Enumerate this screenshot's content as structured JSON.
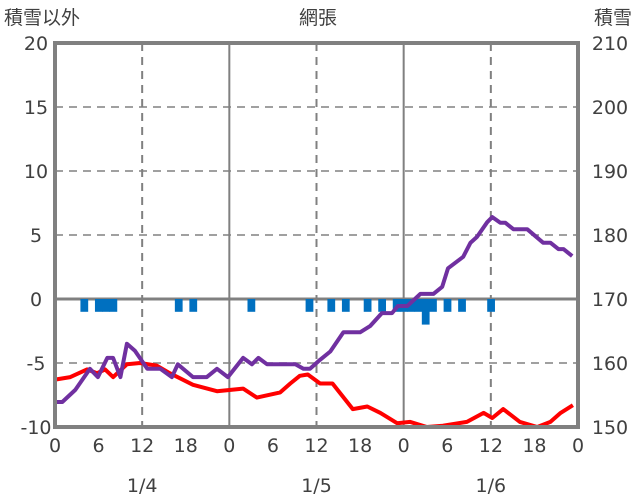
{
  "chart_data": {
    "type": "line",
    "title": "網張",
    "ylabel_left": "積雪以外",
    "ylabel_right": "積雪",
    "ylim_left": [
      -10,
      20
    ],
    "ylim_right": [
      150,
      210
    ],
    "yticks_left": [
      "20",
      "15",
      "10",
      "5",
      "0",
      "-5",
      "-10"
    ],
    "yticks_right": [
      "210",
      "200",
      "190",
      "180",
      "170",
      "160",
      "150"
    ],
    "xlim_hours": [
      0,
      72
    ],
    "xticks": [
      "0",
      "6",
      "12",
      "18",
      "0",
      "6",
      "12",
      "18",
      "0",
      "6",
      "12",
      "18",
      "0"
    ],
    "date_labels": [
      "1/4",
      "1/5",
      "1/6"
    ],
    "grid": true,
    "colors": {
      "red": "#ff0000",
      "purple": "#7030a0",
      "blue": "#0070c0",
      "grid": "#808080"
    },
    "series": [
      {
        "name": "red-line",
        "axis": "left",
        "color": "#ff0000",
        "points": [
          [
            0,
            -6.3
          ],
          [
            2.1,
            -6.1
          ],
          [
            4.4,
            -5.5
          ],
          [
            5.8,
            -5.8
          ],
          [
            6.9,
            -5.5
          ],
          [
            8,
            -6.1
          ],
          [
            9.9,
            -5.1
          ],
          [
            11.7,
            -5
          ],
          [
            14,
            -5.2
          ],
          [
            15.8,
            -5.8
          ],
          [
            19,
            -6.7
          ],
          [
            22.3,
            -7.2
          ],
          [
            25.9,
            -7
          ],
          [
            27.8,
            -7.7
          ],
          [
            31,
            -7.3
          ],
          [
            32.4,
            -6.6
          ],
          [
            33.7,
            -6
          ],
          [
            34.8,
            -5.9
          ],
          [
            36.5,
            -6.6
          ],
          [
            38.2,
            -6.6
          ],
          [
            41,
            -8.6
          ],
          [
            43,
            -8.4
          ],
          [
            44.8,
            -8.9
          ],
          [
            47.1,
            -9.7
          ],
          [
            48.9,
            -9.6
          ],
          [
            51.2,
            -10
          ],
          [
            53.4,
            -9.9
          ],
          [
            56.7,
            -9.6
          ],
          [
            59,
            -8.9
          ],
          [
            60.2,
            -9.3
          ],
          [
            61.7,
            -8.6
          ],
          [
            64,
            -9.6
          ],
          [
            66.4,
            -10
          ],
          [
            68.2,
            -9.6
          ],
          [
            69.6,
            -8.9
          ],
          [
            71.3,
            -8.3
          ]
        ]
      },
      {
        "name": "purple-line",
        "axis": "right",
        "color": "#7030a0",
        "points": [
          [
            0,
            153.9
          ],
          [
            1,
            153.9
          ],
          [
            2.8,
            155.8
          ],
          [
            4.8,
            159.1
          ],
          [
            5.9,
            157.8
          ],
          [
            7.2,
            160.8
          ],
          [
            8,
            160.8
          ],
          [
            9,
            157.8
          ],
          [
            9.9,
            163
          ],
          [
            11,
            161.9
          ],
          [
            12.7,
            159.1
          ],
          [
            14.5,
            159.1
          ],
          [
            16.1,
            157.8
          ],
          [
            16.9,
            159.8
          ],
          [
            19,
            157.8
          ],
          [
            20.9,
            157.8
          ],
          [
            22.3,
            159.1
          ],
          [
            23.8,
            157.8
          ],
          [
            25.9,
            160.8
          ],
          [
            27.1,
            159.8
          ],
          [
            28,
            160.8
          ],
          [
            29.2,
            159.8
          ],
          [
            33.1,
            159.8
          ],
          [
            34.2,
            159.1
          ],
          [
            35.1,
            159.1
          ],
          [
            36.5,
            160.5
          ],
          [
            37.9,
            161.8
          ],
          [
            39.7,
            164.8
          ],
          [
            42,
            164.8
          ],
          [
            43.4,
            165.8
          ],
          [
            45,
            167.8
          ],
          [
            46.4,
            167.8
          ],
          [
            47.2,
            168.9
          ],
          [
            48.5,
            168.9
          ],
          [
            50.3,
            170.8
          ],
          [
            52.1,
            170.8
          ],
          [
            53.3,
            171.9
          ],
          [
            54.1,
            174.8
          ],
          [
            56.2,
            176.6
          ],
          [
            57.2,
            178.8
          ],
          [
            58.1,
            179.7
          ],
          [
            59.5,
            182
          ],
          [
            60.2,
            182.8
          ],
          [
            61.3,
            181.9
          ],
          [
            62,
            181.9
          ],
          [
            63.1,
            180.9
          ],
          [
            65,
            180.9
          ],
          [
            67.2,
            178.8
          ],
          [
            68.2,
            178.8
          ],
          [
            69.3,
            177.8
          ],
          [
            70,
            177.8
          ],
          [
            71.2,
            176.7
          ]
        ]
      },
      {
        "name": "blue-bars",
        "axis": "left",
        "color": "#0070c0",
        "points": [
          [
            4,
            -1
          ],
          [
            6,
            -1
          ],
          [
            7,
            -1
          ],
          [
            8,
            -1
          ],
          [
            17,
            -1
          ],
          [
            19,
            -1
          ],
          [
            27,
            -1
          ],
          [
            35,
            -1
          ],
          [
            38,
            -1
          ],
          [
            40,
            -1
          ],
          [
            43,
            -1
          ],
          [
            45,
            -1
          ],
          [
            47,
            -1
          ],
          [
            48,
            -1
          ],
          [
            49,
            -1
          ],
          [
            50,
            -1
          ],
          [
            51,
            -2
          ],
          [
            52,
            -1
          ],
          [
            54,
            -1
          ],
          [
            56,
            -1
          ],
          [
            60,
            -1
          ]
        ]
      }
    ]
  }
}
